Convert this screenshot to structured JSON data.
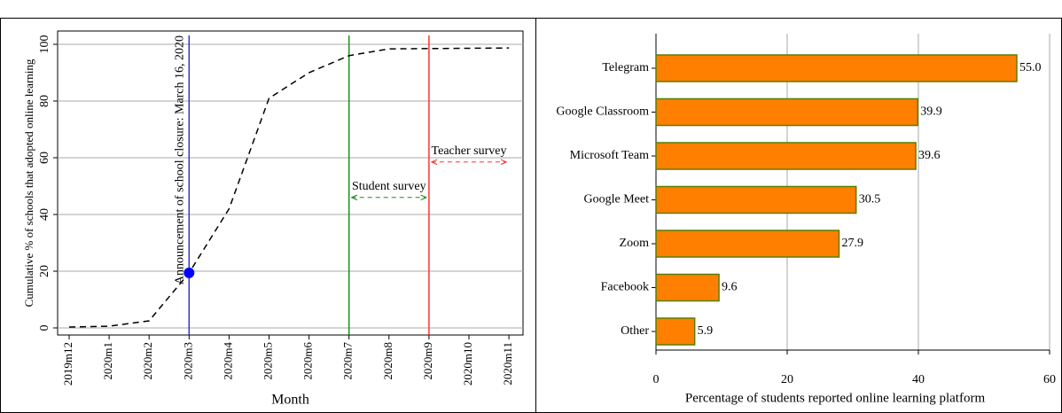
{
  "chart_data": [
    {
      "type": "line",
      "categories": [
        "2019m12",
        "2020m1",
        "2020m2",
        "2020m3",
        "2020m4",
        "2020m5",
        "2020m6",
        "2020m7",
        "2020m8",
        "2020m9",
        "2020m10",
        "2020m11"
      ],
      "values": [
        0.3,
        0.6,
        2.5,
        19.4,
        42,
        81,
        90,
        96,
        98.4,
        98.5,
        98.6,
        98.7
      ],
      "color": "#000000",
      "dashed": true,
      "highlight_index": 3,
      "highlight_color": "#0000ff",
      "ylim": [
        0,
        100
      ],
      "yticks": [
        0,
        20,
        40,
        60,
        80,
        100
      ],
      "grid": true,
      "y_label": "Cumulative % of schools that adopted online learning",
      "x_label": "Month",
      "reference_lines": [
        {
          "x": "2020m3",
          "color": "#3333cc",
          "label": "Announcement of school closure: March 16, 2020"
        },
        {
          "x": "2020m7",
          "color": "#228b22"
        },
        {
          "x": "2020m9",
          "color": "#ff3333"
        }
      ],
      "arrows": [
        {
          "text": "Student survey",
          "from": "2020m7",
          "to": "2020m9",
          "y": 46,
          "color": "#228b22"
        },
        {
          "text": "Teacher survey",
          "from": "2020m9",
          "to": "2020m11",
          "y": 58.5,
          "color": "#ff3333"
        }
      ]
    },
    {
      "type": "hbar",
      "categories": [
        "Telegram",
        "Google Classroom",
        "Microsoft Team",
        "Google Meet",
        "Zoom",
        "Facebook",
        "Other"
      ],
      "values": [
        55,
        39.9,
        39.6,
        30.5,
        27.9,
        9.6,
        5.9
      ],
      "value_labels": [
        "55.0",
        "39.9",
        "39.6",
        "30.5",
        "27.9",
        "9.6",
        "5.9"
      ],
      "color": "#ff8000",
      "edge_color": "#5a7d00",
      "xlim": [
        0,
        60
      ],
      "xticks": [
        0,
        20,
        40,
        60
      ],
      "grid": true,
      "x_label": "Percentage of students reported online learning platform"
    }
  ]
}
